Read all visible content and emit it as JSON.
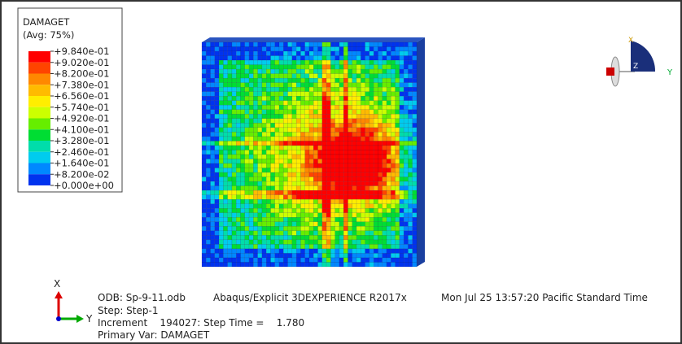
{
  "legend": {
    "title": "DAMAGET",
    "subtitle": "(Avg: 75%)",
    "labels": [
      "+9.840e-01",
      "+9.020e-01",
      "+8.200e-01",
      "+7.380e-01",
      "+6.560e-01",
      "+5.740e-01",
      "+4.920e-01",
      "+4.100e-01",
      "+3.280e-01",
      "+2.460e-01",
      "+1.640e-01",
      "+8.200e-02",
      "+0.000e+00"
    ],
    "colors": [
      "#ff0000",
      "#ff4400",
      "#ff8800",
      "#ffbb00",
      "#ffee00",
      "#ccff00",
      "#66ee00",
      "#00dd33",
      "#00ddaa",
      "#00ccee",
      "#0088ff",
      "#0033ee"
    ]
  },
  "triad": {
    "x": "X",
    "y": "Y",
    "z": "Z"
  },
  "info": {
    "odb": "ODB: Sp-9-11.odb",
    "product": "Abaqus/Explicit 3DEXPERIENCE R2017x",
    "date": "Mon Jul 25 13:57:20 Pacific Standard Time",
    "step": "Step: Step-1",
    "increment": "Increment    194027: Step Time =    1.780",
    "primary": "Primary Var: DAMAGET"
  }
}
